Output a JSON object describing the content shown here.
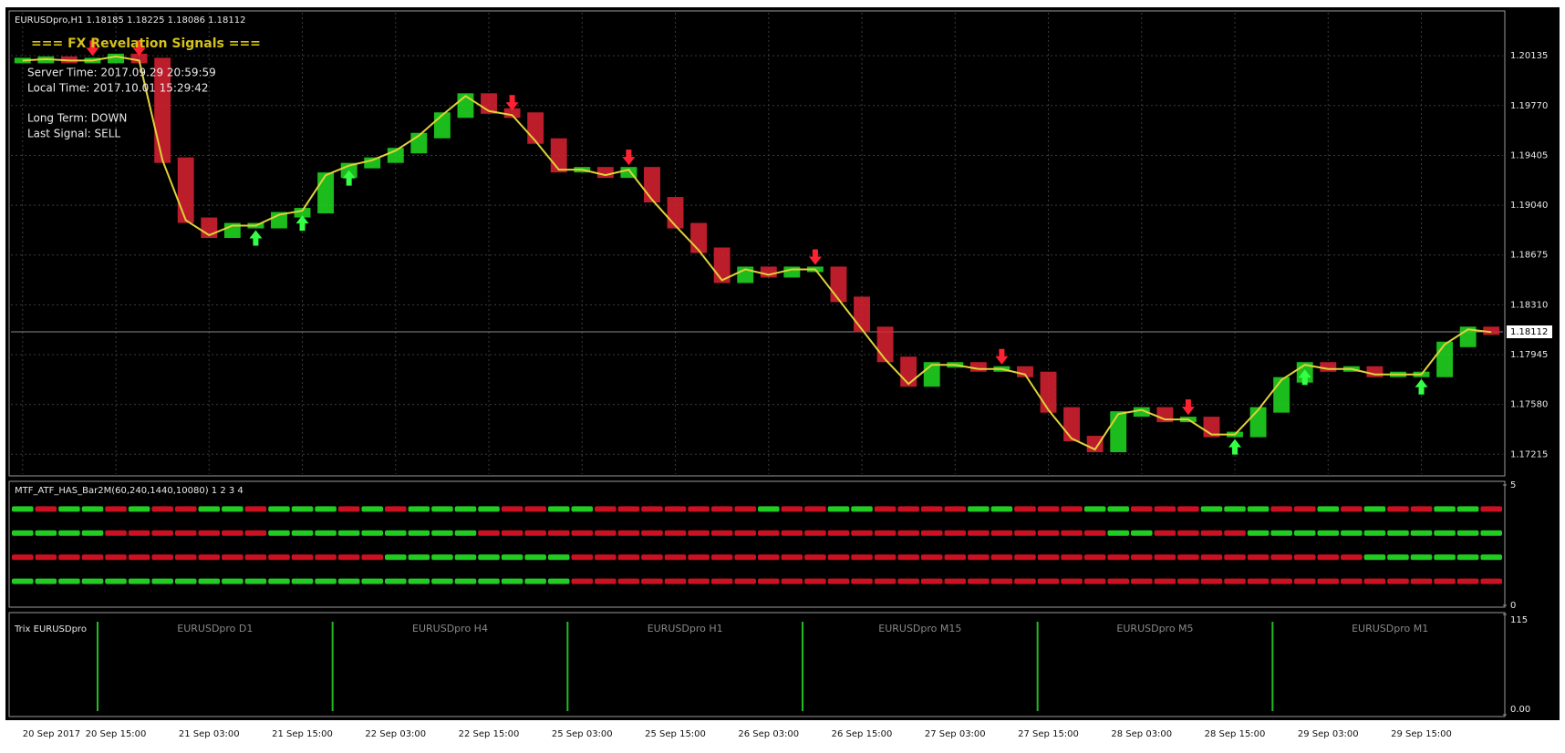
{
  "chart_data": [
    {
      "type": "line",
      "header": "EURUSDpro,H1  1.18185 1.18225 1.18086 1.18112",
      "title": "=== FX Revelation Signals ===",
      "info": [
        "Server Time: 2017.09.29 20:59:59",
        "Local Time: 2017.10.01 15:29:42",
        "Long Term: DOWN",
        "Last Signal: SELL"
      ],
      "categories": [
        "20 Sep 2017",
        null,
        null,
        null,
        "20 Sep 15:00",
        null,
        null,
        null,
        "21 Sep 03:00",
        null,
        null,
        null,
        "21 Sep 15:00",
        null,
        null,
        null,
        "22 Sep 03:00",
        null,
        null,
        null,
        "22 Sep 15:00",
        null,
        null,
        null,
        "25 Sep 03:00",
        null,
        null,
        null,
        "25 Sep 15:00",
        null,
        null,
        null,
        "26 Sep 03:00",
        null,
        null,
        null,
        "26 Sep 15:00",
        null,
        null,
        null,
        "27 Sep 03:00",
        null,
        null,
        null,
        "27 Sep 15:00",
        null,
        null,
        null,
        "28 Sep 03:00",
        null,
        null,
        null,
        "28 Sep 15:00",
        null,
        null,
        null,
        "29 Sep 03:00",
        null,
        null,
        null,
        "29 Sep 15:00",
        null,
        null,
        null
      ],
      "series": [
        {
          "up_color": "#22dd22",
          "down_color": "#dd2233",
          "values": [
            1.201,
            1.2011,
            1.201,
            1.201,
            1.2013,
            1.201,
            1.1937,
            1.1893,
            1.1882,
            1.1889,
            1.1889,
            1.1897,
            1.19,
            1.1926,
            1.1933,
            1.1937,
            1.1944,
            1.1955,
            1.197,
            1.1984,
            1.1973,
            1.197,
            1.1951,
            1.193,
            1.193,
            1.1926,
            1.193,
            1.1908,
            1.1889,
            1.1871,
            1.1849,
            1.1857,
            1.1853,
            1.1857,
            1.1857,
            1.1835,
            1.1813,
            1.1791,
            1.1773,
            1.1787,
            1.1787,
            1.1784,
            1.1784,
            1.178,
            1.1754,
            1.1733,
            1.1725,
            1.1751,
            1.1754,
            1.1747,
            1.1747,
            1.1736,
            1.1736,
            1.1754,
            1.1776,
            1.1787,
            1.1784,
            1.1784,
            1.178,
            1.178,
            1.178,
            1.1802,
            1.1813,
            1.1811
          ]
        }
      ],
      "sell_signals": [
        3,
        5,
        21,
        26,
        34,
        42,
        50
      ],
      "buy_signals": [
        10,
        12,
        14,
        52,
        55,
        60
      ],
      "buy_color": "#33ff44",
      "sell_color": "#ff2233",
      "last_price": 1.18112,
      "ylim": [
        1.1707,
        1.2045
      ],
      "yticks": [
        {
          "value": 1.17215,
          "label": "1.17215"
        },
        {
          "value": 1.1758,
          "label": "1.17580"
        },
        1.17945,
        {
          "value": 1.1831,
          "label": "1.18310"
        },
        1.18675,
        {
          "value": 1.1904,
          "label": "1.19040"
        },
        1.19405,
        {
          "value": 1.1977,
          "label": "1.19770"
        },
        1.20135
      ],
      "grid": true
    },
    {
      "type": "dots",
      "title": "MTF_ATF_HAS_Bar2M(60,240,1440,10080) 1 2 3 4",
      "on_color": "#22cc22",
      "off_color": "#cc1122",
      "ylim": [
        0,
        5
      ],
      "yticks": [
        0,
        5
      ],
      "rows": [
        [
          1,
          0,
          1,
          1,
          0,
          1,
          0,
          0,
          1,
          1,
          0,
          1,
          1,
          1,
          0,
          1,
          0,
          1,
          1,
          1,
          1,
          0,
          0,
          1,
          1,
          0,
          0,
          0,
          0,
          0,
          0,
          0,
          1,
          0,
          0,
          1,
          1,
          0,
          0,
          0,
          0,
          1,
          1,
          0,
          0,
          0,
          1,
          1,
          0,
          0,
          0,
          1,
          1,
          1,
          0,
          0,
          1,
          0,
          1,
          0,
          0,
          1,
          1,
          0
        ],
        [
          1,
          1,
          1,
          1,
          0,
          0,
          0,
          0,
          0,
          0,
          0,
          1,
          1,
          1,
          1,
          1,
          1,
          1,
          1,
          1,
          0,
          0,
          0,
          0,
          0,
          0,
          0,
          0,
          0,
          0,
          0,
          0,
          0,
          0,
          0,
          0,
          0,
          0,
          0,
          0,
          0,
          0,
          0,
          0,
          0,
          0,
          0,
          1,
          1,
          0,
          0,
          0,
          0,
          1,
          1,
          1,
          1,
          1,
          1,
          1,
          1,
          1,
          1,
          1
        ],
        [
          0,
          0,
          0,
          0,
          0,
          0,
          0,
          0,
          0,
          0,
          0,
          0,
          0,
          0,
          0,
          0,
          1,
          1,
          1,
          1,
          1,
          1,
          1,
          1,
          0,
          0,
          0,
          0,
          0,
          0,
          0,
          0,
          0,
          0,
          0,
          0,
          0,
          0,
          0,
          0,
          0,
          0,
          0,
          0,
          0,
          0,
          0,
          0,
          0,
          0,
          0,
          0,
          0,
          0,
          0,
          0,
          0,
          0,
          1,
          1,
          1,
          1,
          1,
          1
        ],
        [
          1,
          1,
          1,
          1,
          1,
          1,
          1,
          1,
          1,
          1,
          1,
          1,
          1,
          1,
          1,
          1,
          1,
          1,
          1,
          1,
          1,
          1,
          1,
          1,
          0,
          0,
          0,
          0,
          0,
          0,
          0,
          0,
          0,
          0,
          0,
          0,
          0,
          0,
          0,
          0,
          0,
          0,
          0,
          0,
          0,
          0,
          0,
          0,
          0,
          0,
          0,
          0,
          0,
          0,
          0,
          0,
          0,
          0,
          0,
          0,
          0,
          0,
          0,
          0
        ]
      ]
    },
    {
      "type": "panels",
      "title": "Trix EURUSDpro",
      "panels": [
        "EURUSDpro D1",
        "EURUSDpro H4",
        "EURUSDpro H1",
        "EURUSDpro M15",
        "EURUSDpro M5",
        "EURUSDpro M1"
      ],
      "ylim": [
        0,
        115
      ],
      "yticks": [
        {
          "value": 0,
          "label": "0.00"
        },
        115
      ]
    }
  ]
}
